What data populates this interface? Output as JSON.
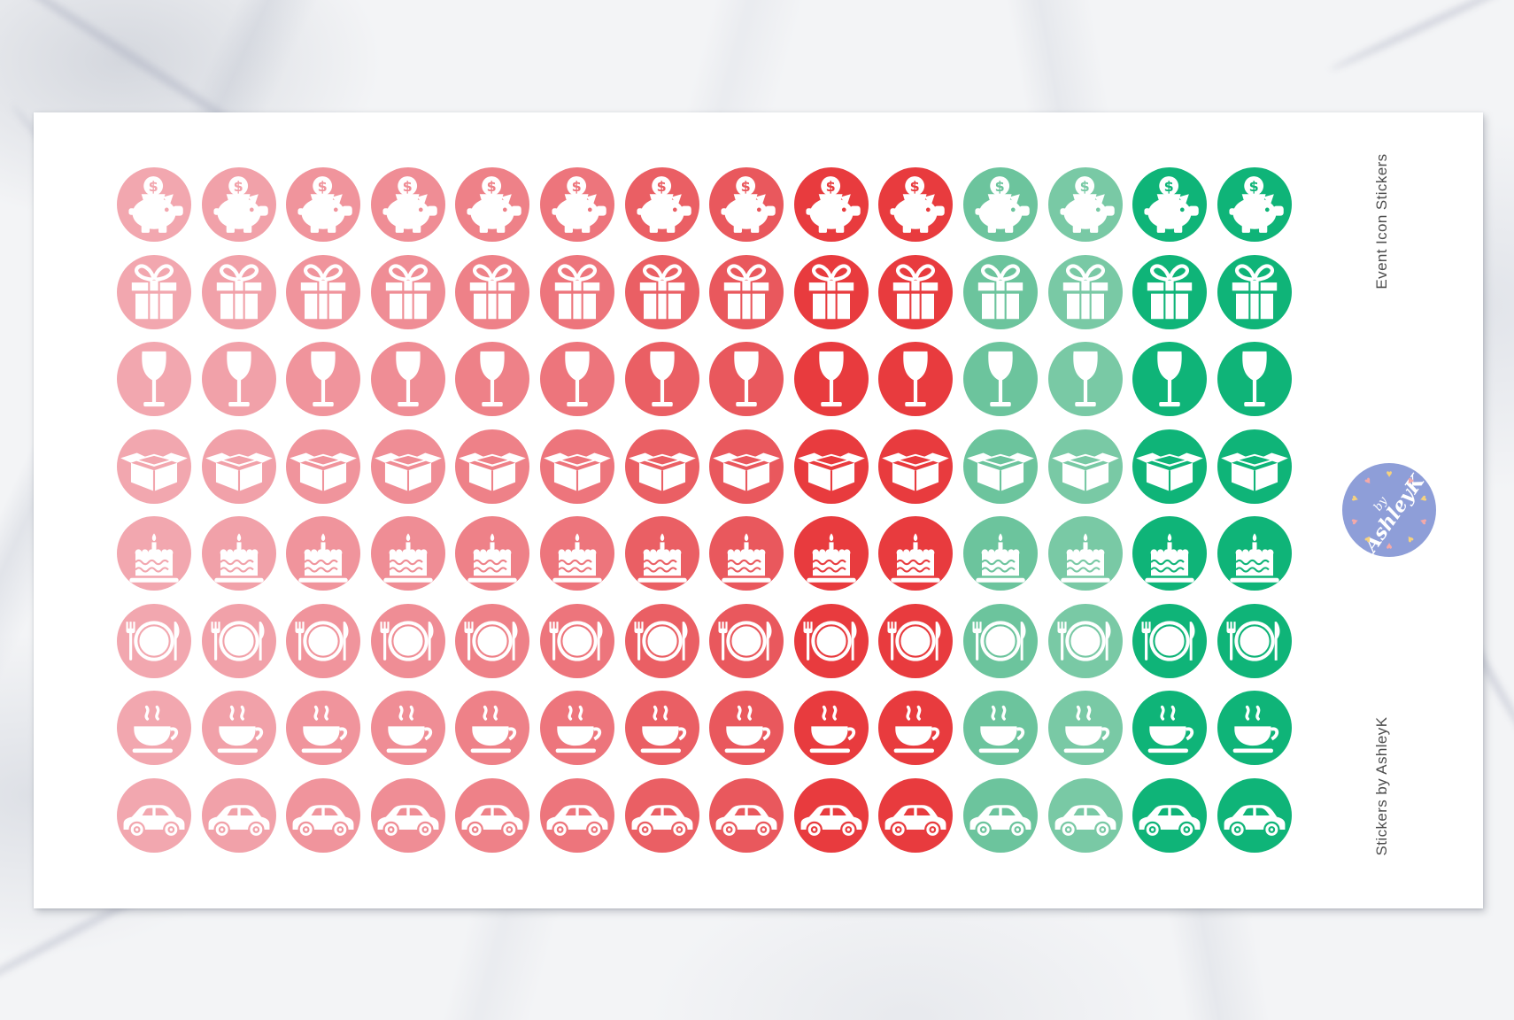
{
  "sheet": {
    "background_color": "#FFFFFF",
    "side_text_top": "Event Icon Stickers",
    "side_text_bottom": "Stickers by AshleyK",
    "badge": {
      "text_small": "by",
      "text_main": "AshleyK",
      "background_color": "#8E9ED8",
      "text_color": "#FFFFFF",
      "heart_colors": [
        "#F6D27E",
        "#F4A9A9"
      ],
      "heart_count": 10
    },
    "grid": {
      "columns": 14,
      "rows": [
        {
          "name": "piggy-bank",
          "icon": "piggy-bank-icon"
        },
        {
          "name": "gift",
          "icon": "gift-icon"
        },
        {
          "name": "wine-glass",
          "icon": "wine-glass-icon"
        },
        {
          "name": "open-box",
          "icon": "open-box-icon"
        },
        {
          "name": "birthday-cake",
          "icon": "birthday-cake-icon"
        },
        {
          "name": "dinner-plate",
          "icon": "dinner-plate-icon"
        },
        {
          "name": "coffee-cup",
          "icon": "coffee-cup-icon"
        },
        {
          "name": "car",
          "icon": "car-icon"
        }
      ],
      "column_colors": [
        "#F2A7AF",
        "#F1A1A9",
        "#F0949C",
        "#EF8D95",
        "#EE8188",
        "#ED757C",
        "#EA5F64",
        "#E9585D",
        "#E83B3E",
        "#E83B3E",
        "#6CC49D",
        "#79C9A5",
        "#0FB478",
        "#0FB478"
      ],
      "icon_color": "#FFFFFF",
      "coin_symbol": "$"
    }
  }
}
